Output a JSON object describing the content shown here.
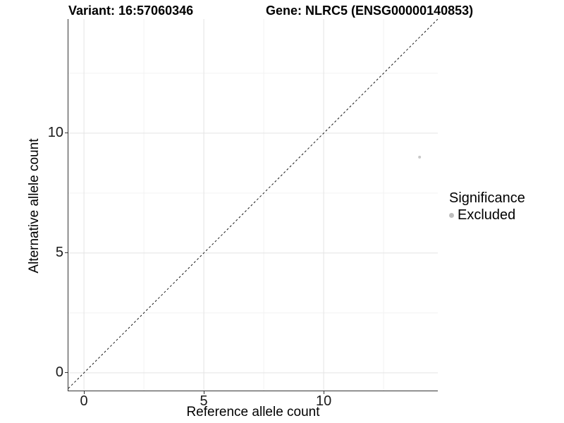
{
  "header": {
    "variant_title": "Variant: 16:57060346",
    "gene_title": "Gene: NLRC5 (ENSG00000140853)"
  },
  "chart_data": {
    "type": "scatter",
    "xlabel": "Reference allele count",
    "ylabel": "Alternative allele count",
    "xlim": [
      -0.65,
      14.76
    ],
    "ylim": [
      -0.74,
      14.76
    ],
    "x_ticks": [
      0,
      5,
      10
    ],
    "y_ticks": [
      0,
      5,
      10
    ],
    "x_minor_gridlines": [
      2.5,
      7.5,
      12.5
    ],
    "y_minor_gridlines": [
      2.5,
      7.5,
      12.5
    ],
    "grid": true,
    "points": [
      {
        "x": 14,
        "y": 9,
        "series": "Excluded",
        "color": "#c8c8c8",
        "radius": 2
      }
    ],
    "reference_line": {
      "type": "identity",
      "slope": 1,
      "intercept": 0,
      "style": "dashed",
      "color": "#1a1a1a"
    },
    "legend": {
      "title": "Significance",
      "position": "right",
      "entries": [
        {
          "label": "Excluded",
          "color": "#bdbdbd"
        }
      ]
    },
    "colors": {
      "axis_line": "#333333",
      "tick_mark": "#333333",
      "grid_major": "#e4e4e4",
      "grid_minor": "#f2f2f2"
    }
  }
}
